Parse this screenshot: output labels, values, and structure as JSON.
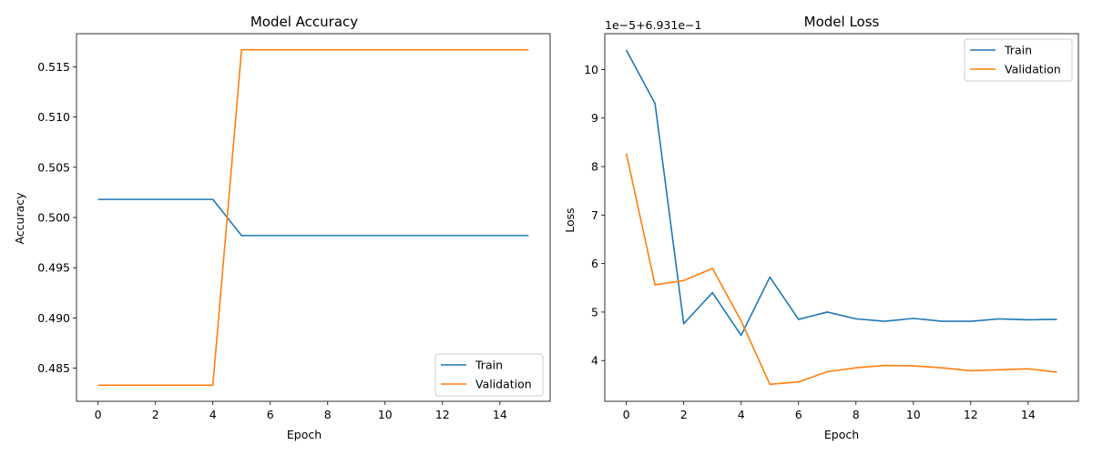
{
  "chart_data": [
    {
      "type": "line",
      "title": "Model Accuracy",
      "xlabel": "Epoch",
      "ylabel": "Accuracy",
      "x": [
        0,
        1,
        2,
        3,
        4,
        5,
        6,
        7,
        8,
        9,
        10,
        11,
        12,
        13,
        14,
        15
      ],
      "xlim": [
        -0.75,
        15.75
      ],
      "ylim": [
        0.4817,
        0.5183
      ],
      "xticks": [
        "0",
        "2",
        "4",
        "6",
        "8",
        "10",
        "12",
        "14"
      ],
      "yticks": [
        "0.485",
        "0.490",
        "0.495",
        "0.500",
        "0.505",
        "0.510",
        "0.515"
      ],
      "offset_text": "",
      "series": [
        {
          "name": "Train",
          "color": "#1f77b4",
          "values": [
            0.5018,
            0.5018,
            0.5018,
            0.5018,
            0.5018,
            0.4982,
            0.4982,
            0.4982,
            0.4982,
            0.4982,
            0.4982,
            0.4982,
            0.4982,
            0.4982,
            0.4982,
            0.4982
          ]
        },
        {
          "name": "Validation",
          "color": "#ff7f0e",
          "values": [
            0.4833,
            0.4833,
            0.4833,
            0.4833,
            0.4833,
            0.5167,
            0.5167,
            0.5167,
            0.5167,
            0.5167,
            0.5167,
            0.5167,
            0.5167,
            0.5167,
            0.5167,
            0.5167
          ]
        }
      ],
      "grid": false,
      "legend_position": "lower-right"
    },
    {
      "type": "line",
      "title": "Model Loss",
      "xlabel": "Epoch",
      "ylabel": "Loss",
      "x": [
        0,
        1,
        2,
        3,
        4,
        5,
        6,
        7,
        8,
        9,
        10,
        11,
        12,
        13,
        14,
        15
      ],
      "xlim": [
        -0.75,
        15.75
      ],
      "ylim": [
        3.16,
        10.74
      ],
      "xticks": [
        "0",
        "2",
        "4",
        "6",
        "8",
        "10",
        "12",
        "14"
      ],
      "yticks": [
        "4",
        "5",
        "6",
        "7",
        "8",
        "9",
        "10"
      ],
      "offset_text": "1e−5+6.931e−1",
      "series": [
        {
          "name": "Train",
          "color": "#1f77b4",
          "values": [
            10.4,
            9.3,
            4.76,
            5.4,
            4.52,
            5.72,
            4.85,
            5.0,
            4.86,
            4.81,
            4.87,
            4.81,
            4.81,
            4.86,
            4.84,
            4.85
          ]
        },
        {
          "name": "Validation",
          "color": "#ff7f0e",
          "values": [
            8.27,
            5.56,
            5.65,
            5.9,
            4.82,
            3.51,
            3.56,
            3.77,
            3.85,
            3.9,
            3.89,
            3.85,
            3.79,
            3.81,
            3.83,
            3.76
          ]
        }
      ],
      "grid": false,
      "legend_position": "upper-right"
    }
  ]
}
